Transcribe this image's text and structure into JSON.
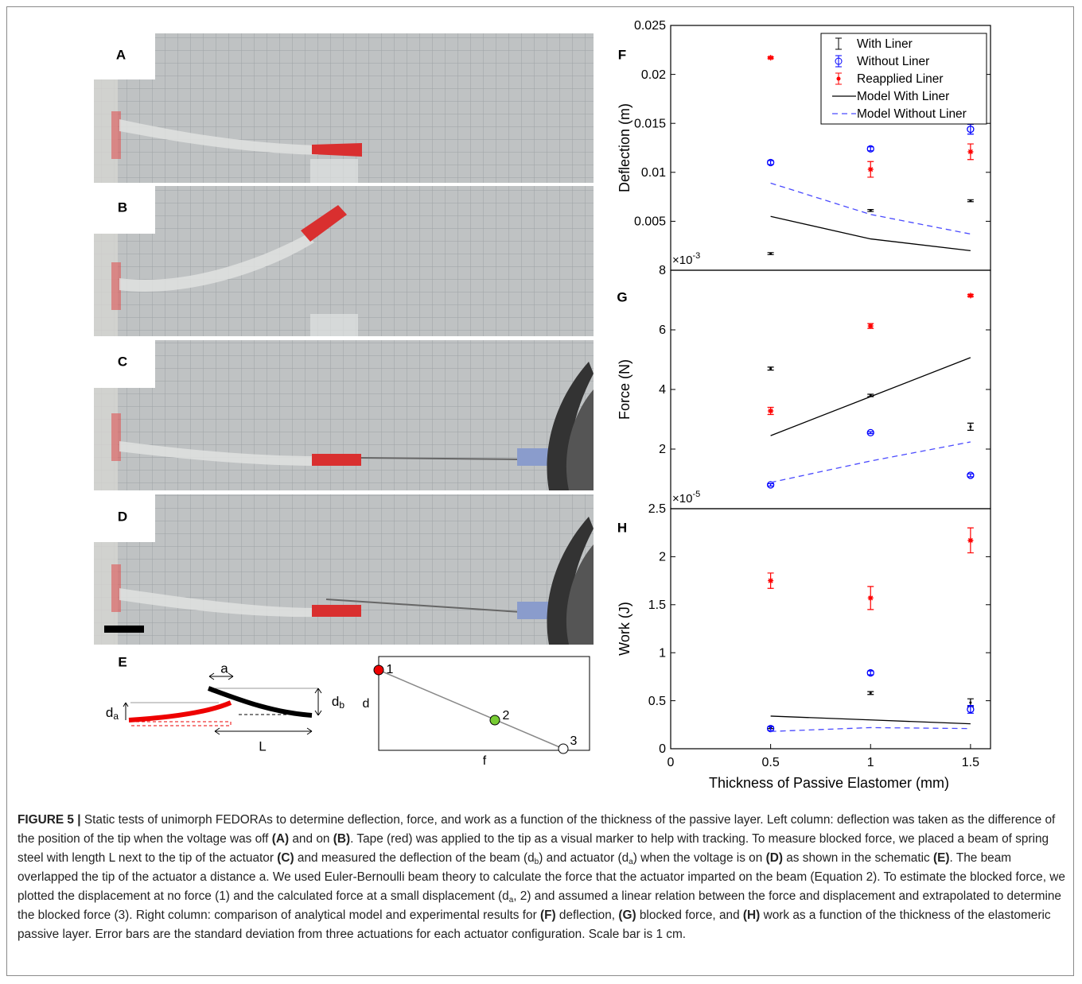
{
  "panels": [
    "A",
    "B",
    "C",
    "D",
    "E"
  ],
  "schematic": {
    "labels": [
      "a",
      "d",
      "a",
      "d",
      "b",
      "L"
    ]
  },
  "diagram": {
    "points": [
      "1",
      "2",
      "3"
    ],
    "xlabel": "f",
    "ylabel": "d"
  },
  "chart_data": [
    {
      "type": "errorbar",
      "panel": "F",
      "ylabel": "Deflection (m)",
      "xlim": [
        0,
        1.6
      ],
      "ylim": [
        0,
        0.025
      ],
      "yticks": [
        0.005,
        0.01,
        0.015,
        0.02,
        0.025
      ],
      "legend": "upper right",
      "x": [
        0.5,
        1,
        1.5
      ],
      "series": [
        {
          "name": "With Liner",
          "kind": "errorbar",
          "marker": "dot",
          "color": "#000000",
          "values": [
            0.0017,
            0.0061,
            0.0071
          ],
          "errors": [
            0.0001,
            0.0001,
            0.0001
          ]
        },
        {
          "name": "Without Liner",
          "kind": "errorbar",
          "marker": "circle",
          "color": "#0000ff",
          "values": [
            0.011,
            0.0124,
            0.0144
          ],
          "errors": [
            0.0002,
            0.0002,
            0.0005
          ]
        },
        {
          "name": "Reapplied Liner",
          "kind": "errorbar",
          "marker": "star",
          "color": "#ff0000",
          "values": [
            0.0217,
            0.0103,
            0.0121
          ],
          "errors": [
            0.0001,
            0.0008,
            0.0008
          ]
        },
        {
          "name": "Model With Liner",
          "kind": "line",
          "dash": false,
          "color": "#000000",
          "values": [
            0.0055,
            0.0032,
            0.002
          ]
        },
        {
          "name": "Model Without Liner",
          "kind": "line",
          "dash": true,
          "color": "#4a4aff",
          "values": [
            0.0089,
            0.0057,
            0.0037
          ]
        }
      ]
    },
    {
      "type": "errorbar",
      "panel": "G",
      "ylabel": "Force (N)",
      "multiplier": {
        "base": "×10",
        "exponent": "-3"
      },
      "xlim": [
        0,
        1.6
      ],
      "ylim": [
        0,
        8
      ],
      "yticks": [
        2,
        4,
        6,
        8
      ],
      "x": [
        0.5,
        1,
        1.5
      ],
      "series": [
        {
          "kind": "errorbar",
          "marker": "dot",
          "color": "#000000",
          "values": [
            4.7,
            3.8,
            2.75
          ],
          "errors": [
            0.05,
            0.04,
            0.12
          ]
        },
        {
          "kind": "errorbar",
          "marker": "circle",
          "color": "#0000ff",
          "values": [
            0.8,
            2.55,
            1.12
          ],
          "errors": [
            0.04,
            0.03,
            0.05
          ]
        },
        {
          "kind": "errorbar",
          "marker": "star",
          "color": "#ff0000",
          "values": [
            3.28,
            6.13,
            7.15
          ],
          "errors": [
            0.12,
            0.08,
            0.04
          ]
        },
        {
          "kind": "line",
          "dash": false,
          "color": "#000000",
          "values": [
            2.45,
            3.76,
            5.07
          ]
        },
        {
          "kind": "line",
          "dash": true,
          "color": "#4a4aff",
          "values": [
            0.88,
            1.6,
            2.24
          ]
        }
      ]
    },
    {
      "type": "errorbar",
      "panel": "H",
      "ylabel": "Work (J)",
      "xlabel": "Thickness of Passive Elastomer (mm)",
      "multiplier": {
        "base": "×10",
        "exponent": "-5"
      },
      "xlim": [
        0,
        1.6
      ],
      "xticks": [
        0,
        0.5,
        1,
        1.5
      ],
      "ylim": [
        0,
        2.5
      ],
      "yticks": [
        0,
        0.5,
        1,
        1.5,
        2,
        2.5
      ],
      "x": [
        0.5,
        1,
        1.5
      ],
      "series": [
        {
          "kind": "errorbar",
          "marker": "dot",
          "color": "#000000",
          "values": [
            0.22,
            0.58,
            0.48
          ],
          "errors": [
            0.01,
            0.015,
            0.04
          ]
        },
        {
          "kind": "errorbar",
          "marker": "circle",
          "color": "#0000ff",
          "values": [
            0.21,
            0.79,
            0.41
          ],
          "errors": [
            0.02,
            0.02,
            0.04
          ]
        },
        {
          "kind": "errorbar",
          "marker": "star",
          "color": "#ff0000",
          "values": [
            1.75,
            1.57,
            2.17
          ],
          "errors": [
            0.08,
            0.12,
            0.13
          ]
        },
        {
          "kind": "line",
          "dash": false,
          "color": "#000000",
          "values": [
            0.34,
            0.3,
            0.26
          ]
        },
        {
          "kind": "line",
          "dash": true,
          "color": "#4a4aff",
          "values": [
            0.18,
            0.22,
            0.21
          ]
        }
      ]
    }
  ],
  "caption": [
    "FIGURE 5 |",
    " Static tests of unimorph FEDORAs to determine deflection, force, and work as a function of the thickness of the passive layer. Left column: deflection was taken as the difference of the position of the tip when the voltage was off ",
    "(A)",
    " and on ",
    "(B)",
    ". Tape (red) was applied to the tip as a visual marker to help with tracking. To measure blocked force, we placed a beam of spring steel with length L next to the tip of the actuator ",
    "(C)",
    " and measured the deflection of the beam (d",
    "b",
    ") and actuator (d",
    "a",
    ") when the voltage is on ",
    "(D)",
    " as shown in the schematic ",
    "(E)",
    ". The beam overlapped the tip of the actuator a distance a. We used Euler-Bernoulli beam theory to calculate the force that the actuator imparted on the beam (Equation 2). To estimate the blocked force, we plotted the displacement at no force (1) and the calculated force at a small displacement (d",
    "a",
    ", 2) and assumed a linear relation between the force and displacement and extrapolated to determine the blocked force (3). Right column: comparison of analytical model and experimental results for ",
    "(F)",
    " deflection, ",
    "(G)",
    " blocked force, and ",
    "(H)",
    " work as a function of the thickness of the elastomeric passive layer. Error bars are the standard deviation from three actuations for each actuator configuration. Scale bar is 1 cm."
  ]
}
